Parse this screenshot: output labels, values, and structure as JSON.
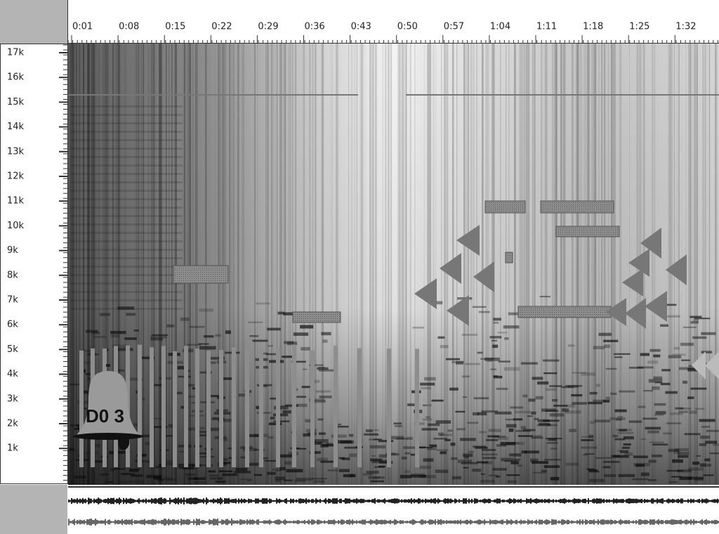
{
  "time_axis": {
    "labels": [
      "0:01",
      "0:08",
      "0:15",
      "0:22",
      "0:29",
      "0:36",
      "0:43",
      "0:50",
      "0:57",
      "1:04",
      "1:11",
      "1:18",
      "1:25",
      "1:32"
    ]
  },
  "frequency_axis": {
    "labels": [
      "17k",
      "16k",
      "15k",
      "14k",
      "13k",
      "12k",
      "11k",
      "10k",
      "9k",
      "8k",
      "7k",
      "6k",
      "5k",
      "4k",
      "3k",
      "2k",
      "1k"
    ]
  },
  "bell": {
    "label": "D0 3"
  }
}
